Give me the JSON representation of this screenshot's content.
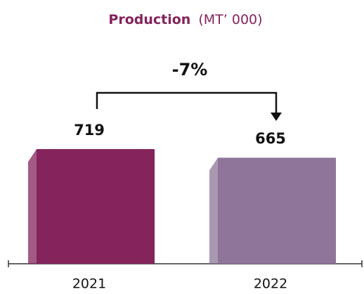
{
  "chart_data": {
    "type": "bar",
    "title": "Production",
    "unit": "(MT’ 000)",
    "annotation": "-7%",
    "categories": [
      "2021",
      "2022"
    ],
    "values": [
      719,
      665
    ],
    "colors": [
      "#84235c",
      "#8e7599"
    ]
  }
}
